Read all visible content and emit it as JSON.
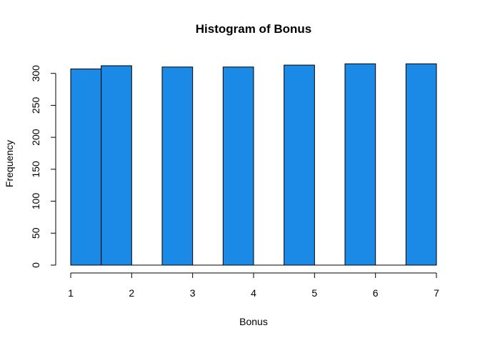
{
  "chart_data": {
    "type": "bar",
    "title": "Histogram of Bonus",
    "xlabel": "Bonus",
    "ylabel": "Frequency",
    "bins": [
      {
        "start": 1.0,
        "end": 1.5,
        "count": 307
      },
      {
        "start": 1.5,
        "end": 2.0,
        "count": 312
      },
      {
        "start": 2.0,
        "end": 2.5,
        "count": 0
      },
      {
        "start": 2.5,
        "end": 3.0,
        "count": 310
      },
      {
        "start": 3.0,
        "end": 3.5,
        "count": 0
      },
      {
        "start": 3.5,
        "end": 4.0,
        "count": 310
      },
      {
        "start": 4.0,
        "end": 4.5,
        "count": 0
      },
      {
        "start": 4.5,
        "end": 5.0,
        "count": 313
      },
      {
        "start": 5.0,
        "end": 5.5,
        "count": 0
      },
      {
        "start": 5.5,
        "end": 6.0,
        "count": 315
      },
      {
        "start": 6.0,
        "end": 6.5,
        "count": 0
      },
      {
        "start": 6.5,
        "end": 7.0,
        "count": 315
      }
    ],
    "xlim": [
      1,
      7
    ],
    "ylim": [
      0,
      315
    ],
    "x_ticks": [
      1,
      2,
      3,
      4,
      5,
      6,
      7
    ],
    "y_ticks": [
      0,
      50,
      100,
      150,
      200,
      250,
      300
    ],
    "grid": false,
    "bar_color": "#1b8ae6",
    "border_color": "#000000"
  }
}
